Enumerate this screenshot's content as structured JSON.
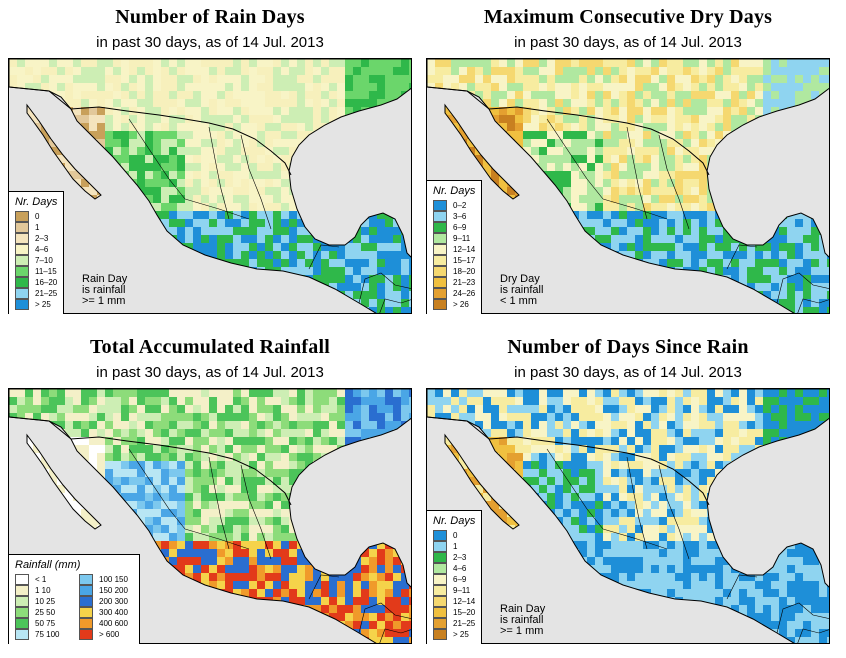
{
  "colors": {
    "ocean": "#e4e4e4",
    "land_default": "#f7f5d2"
  },
  "panels": [
    {
      "title": "Number of Rain Days",
      "subtitle": "in past 30 days, as of  14 Jul. 2013",
      "legend_title": "Nr. Days",
      "note": [
        "Rain Day",
        "is rainfall",
        ">= 1 mm"
      ],
      "legend": [
        {
          "label": "0",
          "color": "#c8a05a"
        },
        {
          "label": "1",
          "color": "#e2c89a"
        },
        {
          "label": "2–3",
          "color": "#f4e4be"
        },
        {
          "label": "4–6",
          "color": "#f8f4c6"
        },
        {
          "label": "7–10",
          "color": "#cdeeb4"
        },
        {
          "label": "11–15",
          "color": "#6bd66b"
        },
        {
          "label": "16–20",
          "color": "#2fb84a"
        },
        {
          "label": "21–25",
          "color": "#8fd4f0"
        },
        {
          "label": "> 25",
          "color": "#1e8fd8"
        }
      ]
    },
    {
      "title": "Maximum Consecutive Dry Days",
      "subtitle": "in past 30 days, as of  14 Jul. 2013",
      "legend_title": "Nr. Days",
      "note": [
        "Dry Day",
        "is rainfall",
        "< 1 mm"
      ],
      "legend": [
        {
          "label": "0–2",
          "color": "#1e8fd8"
        },
        {
          "label": "3–6",
          "color": "#8fd4f0"
        },
        {
          "label": "6–9",
          "color": "#2fb84a"
        },
        {
          "label": "9–11",
          "color": "#b0e8a0"
        },
        {
          "label": "12–14",
          "color": "#f8f4c6"
        },
        {
          "label": "15–17",
          "color": "#f7eca0"
        },
        {
          "label": "18–20",
          "color": "#f5d870"
        },
        {
          "label": "21–23",
          "color": "#f0c040"
        },
        {
          "label": "24–26",
          "color": "#e4a030"
        },
        {
          "label": "> 26",
          "color": "#c88020"
        }
      ]
    },
    {
      "title": "Total Accumulated Rainfall",
      "subtitle": "in past 30 days, as of  14 Jul. 2013",
      "legend_title": "Rainfall (mm)",
      "note": [],
      "legend": [
        {
          "label": "< 1",
          "color": "#ffffff"
        },
        {
          "label": "1   10",
          "color": "#f4f0c8"
        },
        {
          "label": "10   25",
          "color": "#cdeeb4"
        },
        {
          "label": "25   50",
          "color": "#8ddc7a"
        },
        {
          "label": "50   75",
          "color": "#4cc45a"
        },
        {
          "label": "75   100",
          "color": "#b8e6f4"
        },
        {
          "label": "100   150",
          "color": "#7cc8ee"
        },
        {
          "label": "150   200",
          "color": "#4aa6e6"
        },
        {
          "label": "200   300",
          "color": "#2a6ed0"
        },
        {
          "label": "300   400",
          "color": "#f5d34a"
        },
        {
          "label": "400   600",
          "color": "#f09a2a"
        },
        {
          "label": "> 600",
          "color": "#e23a1a"
        }
      ]
    },
    {
      "title": "Number of Days Since Rain",
      "subtitle": "in past 30 days, as of  14 Jul. 2013",
      "legend_title": "Nr. Days",
      "note": [
        "Rain Day",
        "is rainfall",
        ">= 1 mm"
      ],
      "legend": [
        {
          "label": "0",
          "color": "#1e8fd8"
        },
        {
          "label": "1",
          "color": "#8fd4f0"
        },
        {
          "label": "2–3",
          "color": "#2fb84a"
        },
        {
          "label": "4–6",
          "color": "#b0e8a0"
        },
        {
          "label": "6–9",
          "color": "#f8f4c6"
        },
        {
          "label": "9–11",
          "color": "#f7eca0"
        },
        {
          "label": "12–14",
          "color": "#f5d870"
        },
        {
          "label": "15–20",
          "color": "#f0c040"
        },
        {
          "label": "21–25",
          "color": "#e4a030"
        },
        {
          "label": "> 25",
          "color": "#c88020"
        }
      ]
    }
  ]
}
